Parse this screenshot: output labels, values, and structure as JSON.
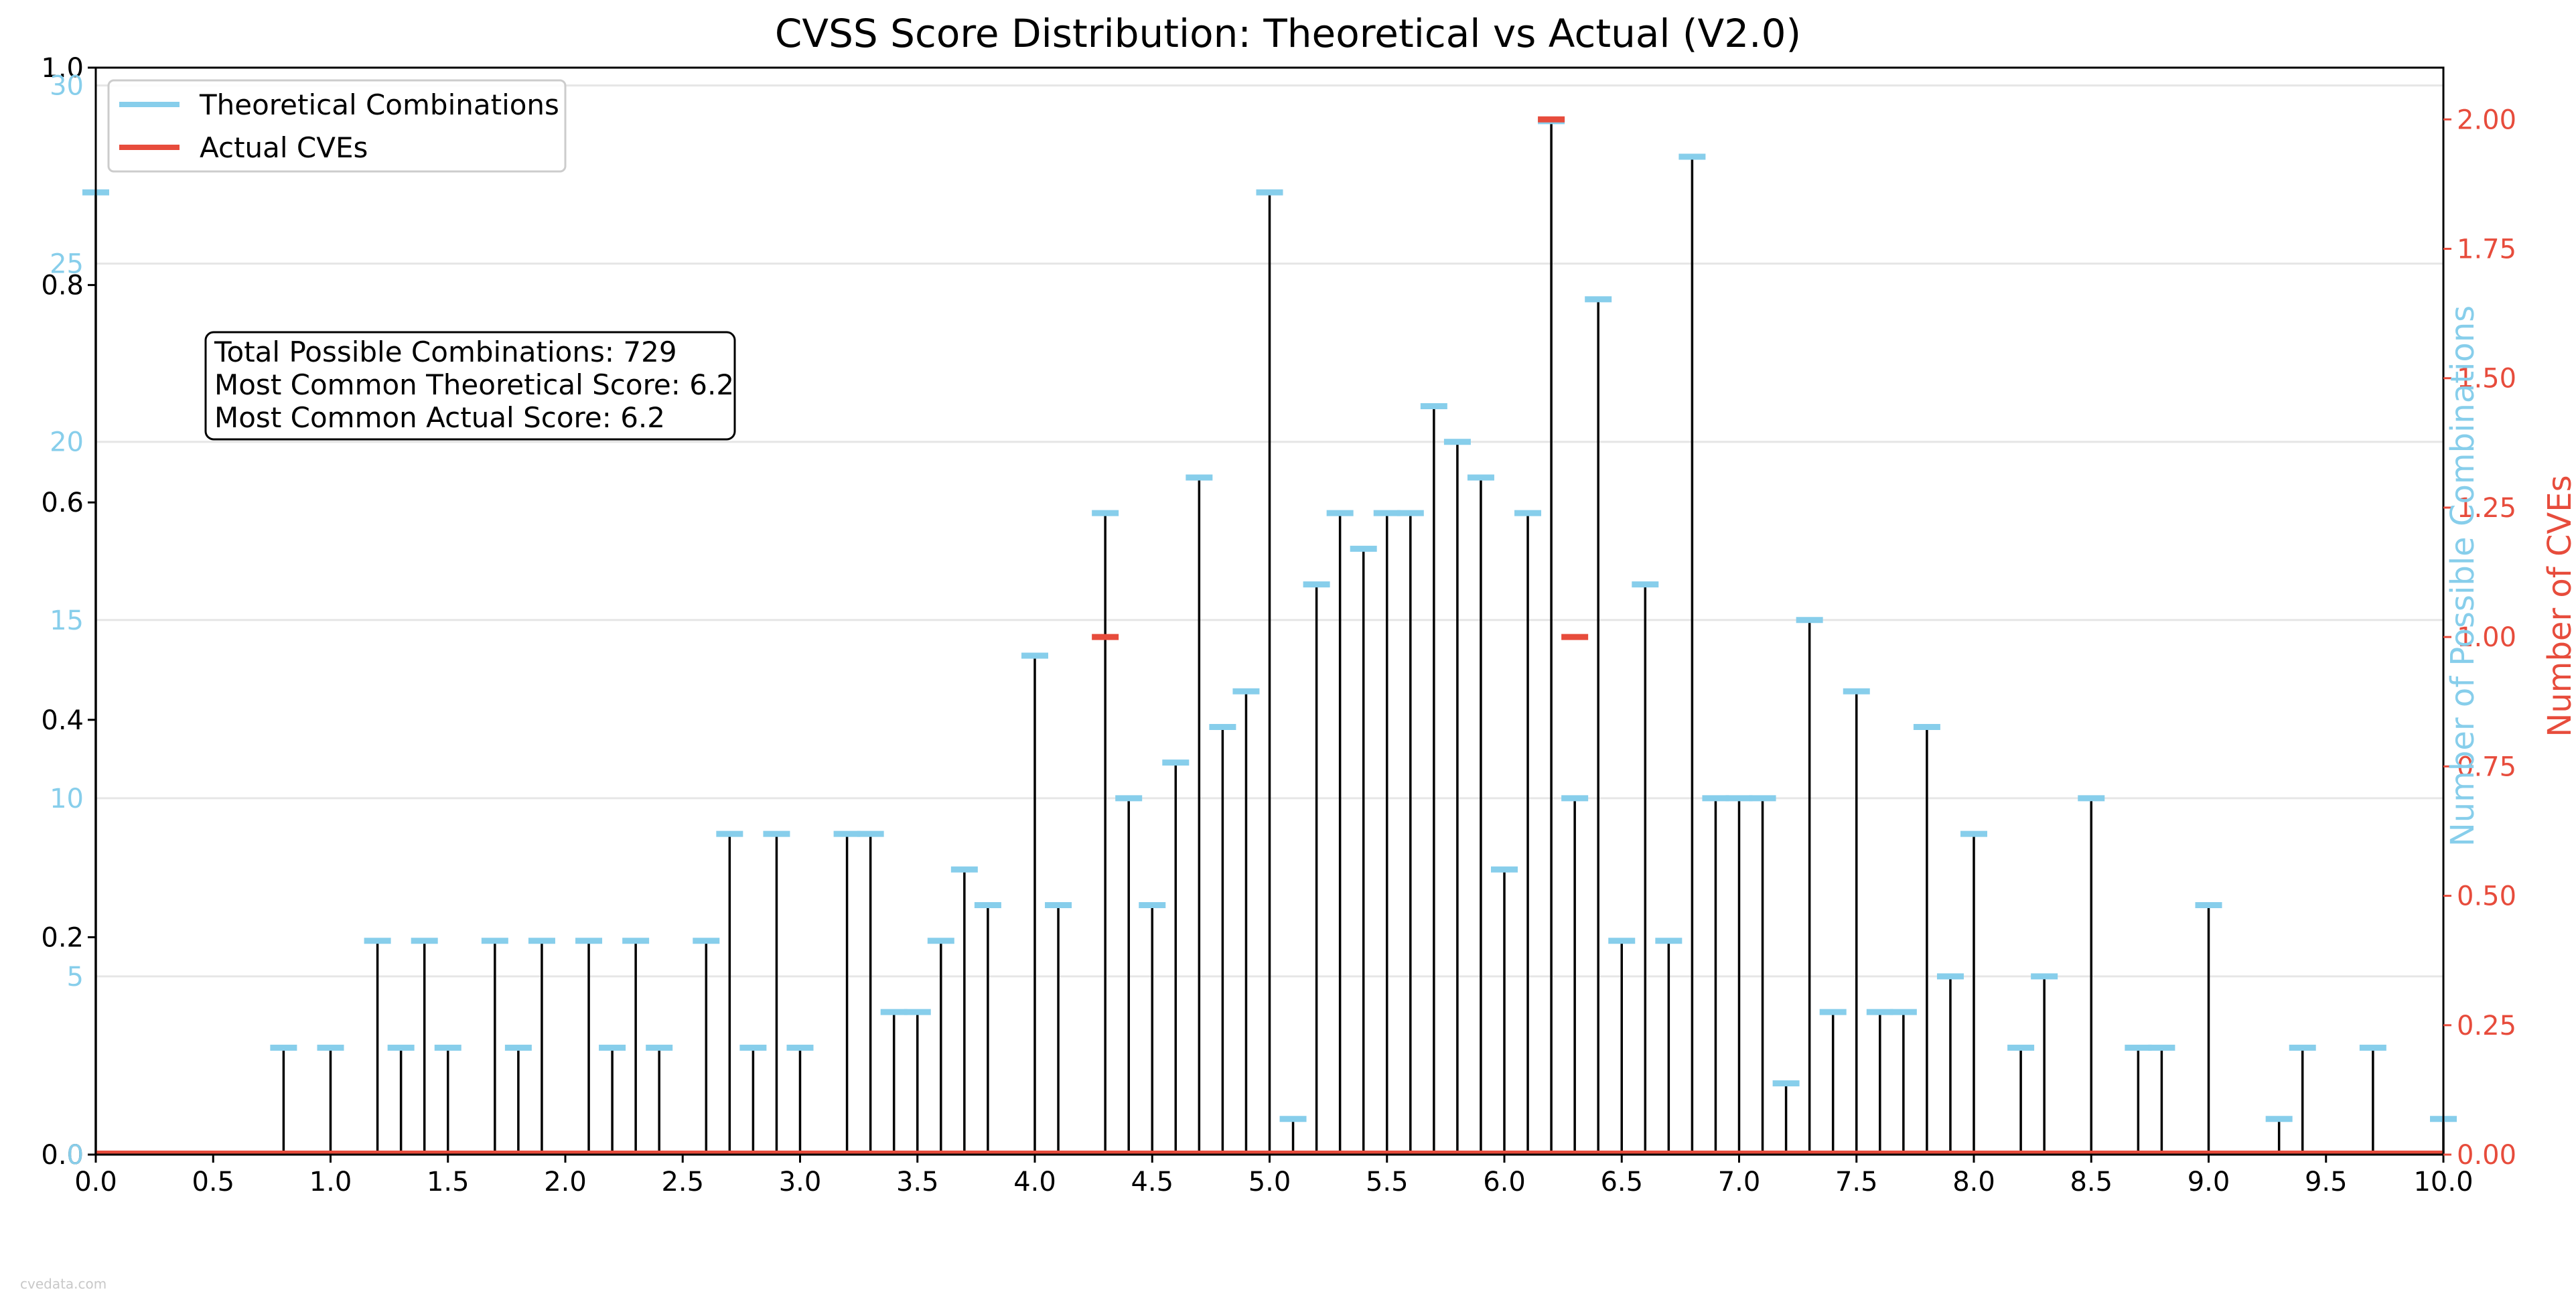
{
  "chart_data": {
    "type": "bar",
    "title": "CVSS Score Distribution: Theoretical vs Actual (V2.0)",
    "xlim": [
      0,
      10
    ],
    "x_ticks": [
      "0.0",
      "0.5",
      "1.0",
      "1.5",
      "2.0",
      "2.5",
      "3.0",
      "3.5",
      "4.0",
      "4.5",
      "5.0",
      "5.5",
      "6.0",
      "6.5",
      "7.0",
      "7.5",
      "8.0",
      "8.5",
      "9.0",
      "9.5",
      "10.0"
    ],
    "left_axis": {
      "ylim": [
        0,
        1.0
      ],
      "ticks": [
        "0.0",
        "0.2",
        "0.4",
        "0.6",
        "0.8",
        "1.0"
      ],
      "color": "#000000"
    },
    "left_overlay_axis": {
      "ylim": [
        0,
        30.5
      ],
      "ticks": [
        "0",
        "5",
        "10",
        "15",
        "20",
        "25",
        "30"
      ],
      "color": "#87CEEB"
    },
    "right_axis": {
      "ylim": [
        0,
        2.1
      ],
      "ticks": [
        "0.00",
        "0.25",
        "0.50",
        "0.75",
        "1.00",
        "1.25",
        "1.50",
        "1.75",
        "2.00"
      ],
      "color": "#e74c3c"
    },
    "right_labels": [
      {
        "text": "Number of Possible Combinations",
        "color": "#87CEEB"
      },
      {
        "text": "Number of CVEs",
        "color": "#e74c3c"
      }
    ],
    "grid": true,
    "legend": {
      "position": "top-left",
      "entries": [
        {
          "label": "Theoretical Combinations",
          "color": "#87CEEB"
        },
        {
          "label": "Actual CVEs",
          "color": "#e74c3c"
        }
      ]
    },
    "info_box": [
      "Total Possible Combinations: 729",
      "Most Common Theoretical Score: 6.2",
      "Most Common Actual Score: 6.2"
    ],
    "series": [
      {
        "name": "Theoretical Combinations",
        "color": "#87CEEB",
        "x": [
          0.0,
          0.8,
          1.0,
          1.2,
          1.3,
          1.4,
          1.5,
          1.7,
          1.8,
          1.9,
          2.1,
          2.2,
          2.3,
          2.4,
          2.6,
          2.7,
          2.8,
          2.9,
          3.0,
          3.2,
          3.3,
          3.4,
          3.5,
          3.6,
          3.7,
          3.8,
          4.0,
          4.1,
          4.3,
          4.4,
          4.5,
          4.6,
          4.7,
          4.8,
          4.9,
          5.0,
          5.1,
          5.2,
          5.3,
          5.4,
          5.5,
          5.6,
          5.7,
          5.8,
          5.9,
          6.0,
          6.1,
          6.2,
          6.3,
          6.4,
          6.5,
          6.6,
          6.7,
          6.8,
          6.9,
          7.0,
          7.1,
          7.2,
          7.3,
          7.4,
          7.5,
          7.6,
          7.7,
          7.8,
          7.9,
          8.0,
          8.2,
          8.3,
          8.5,
          8.7,
          8.8,
          9.0,
          9.3,
          9.4,
          9.7,
          10.0
        ],
        "y": [
          27,
          3,
          3,
          6,
          3,
          6,
          3,
          6,
          3,
          6,
          6,
          3,
          6,
          3,
          6,
          9,
          3,
          9,
          3,
          9,
          9,
          4,
          4,
          6,
          8,
          7,
          14,
          7,
          18,
          10,
          7,
          11,
          19,
          12,
          13,
          27,
          1,
          16,
          18,
          17,
          18,
          18,
          21,
          20,
          19,
          8,
          18,
          29,
          10,
          24,
          6,
          16,
          6,
          28,
          10,
          10,
          10,
          2,
          15,
          4,
          13,
          4,
          4,
          12,
          5,
          9,
          3,
          5,
          10,
          3,
          3,
          7,
          1,
          3,
          3,
          1
        ]
      },
      {
        "name": "Actual CVEs",
        "color": "#e74c3c",
        "x": [
          4.3,
          6.2,
          6.3
        ],
        "y": [
          1,
          2,
          1
        ]
      }
    ]
  },
  "watermark": "cvedata.com"
}
